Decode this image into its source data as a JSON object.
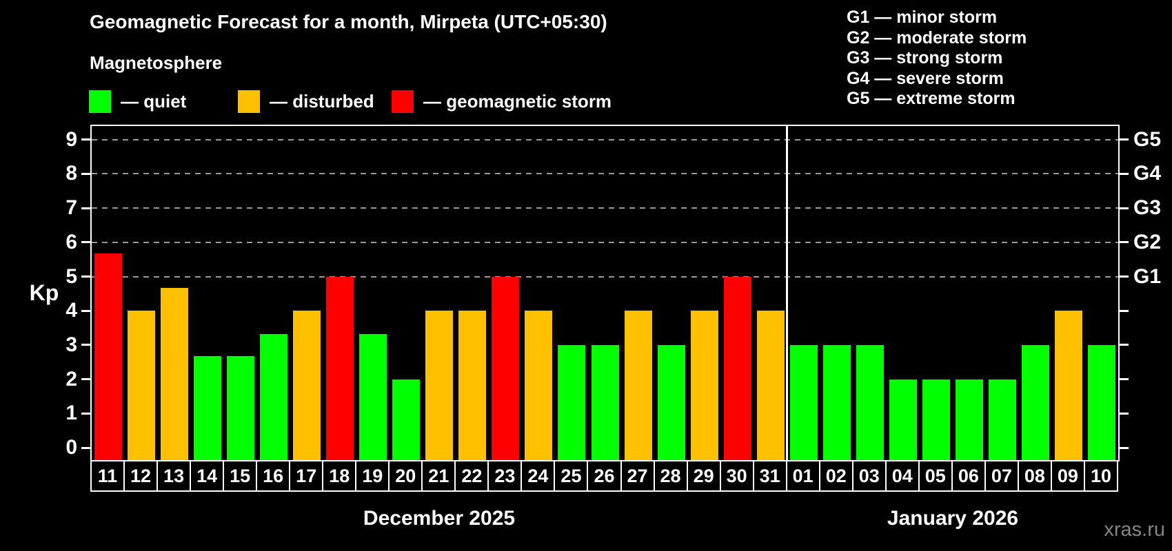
{
  "header": {
    "title": "Geomagnetic Forecast for a month, Mirpeta (UTC+05:30)",
    "subtitle": "Magnetosphere"
  },
  "kp_legend": [
    {
      "key": "quiet",
      "label": "— quiet",
      "color": "#00ff00"
    },
    {
      "key": "disturbed",
      "label": "— disturbed",
      "color": "#ffc000"
    },
    {
      "key": "storm",
      "label": "— geomagnetic storm",
      "color": "#ff0000"
    }
  ],
  "g_legend": [
    "G1 — minor storm",
    "G2 — moderate storm",
    "G3 — strong storm",
    "G4 — severe storm",
    "G5 — extreme storm"
  ],
  "watermark": "xras.ru",
  "chart_data": {
    "type": "bar",
    "title": "Geomagnetic Forecast for a month, Mirpeta (UTC+05:30)",
    "subtitle": "Magnetosphere",
    "ylabel": "Kp",
    "ylim": [
      0,
      9.4
    ],
    "y_ticks": [
      0,
      1,
      2,
      3,
      4,
      5,
      6,
      7,
      8,
      9
    ],
    "gridlines_kp": [
      5,
      6,
      7,
      8,
      9
    ],
    "grid_style": "dashed gray horizontal lines at storm levels",
    "legend_position": "top-left",
    "gridline_color": "#9a9a9a",
    "axis_color": "#ffffff",
    "watermark_color": "#858585",
    "colors": {
      "quiet": "#00ff00",
      "disturbed": "#ffc000",
      "storm": "#ff0000"
    },
    "right_axis": [
      {
        "label": "G1",
        "kp": 5
      },
      {
        "label": "G2",
        "kp": 6
      },
      {
        "label": "G3",
        "kp": 7
      },
      {
        "label": "G4",
        "kp": 8
      },
      {
        "label": "G5",
        "kp": 9
      }
    ],
    "months": [
      {
        "label": "December 2025",
        "days": [
          {
            "day": "11",
            "kp": 5.67,
            "level": "storm"
          },
          {
            "day": "12",
            "kp": 4,
            "level": "disturbed"
          },
          {
            "day": "13",
            "kp": 4.67,
            "level": "disturbed"
          },
          {
            "day": "14",
            "kp": 2.67,
            "level": "quiet"
          },
          {
            "day": "15",
            "kp": 2.67,
            "level": "quiet"
          },
          {
            "day": "16",
            "kp": 3.33,
            "level": "quiet"
          },
          {
            "day": "17",
            "kp": 4,
            "level": "disturbed"
          },
          {
            "day": "18",
            "kp": 5,
            "level": "storm"
          },
          {
            "day": "19",
            "kp": 3.33,
            "level": "quiet"
          },
          {
            "day": "20",
            "kp": 2,
            "level": "quiet"
          },
          {
            "day": "21",
            "kp": 4,
            "level": "disturbed"
          },
          {
            "day": "22",
            "kp": 4,
            "level": "disturbed"
          },
          {
            "day": "23",
            "kp": 5,
            "level": "storm"
          },
          {
            "day": "24",
            "kp": 4,
            "level": "disturbed"
          },
          {
            "day": "25",
            "kp": 3,
            "level": "quiet"
          },
          {
            "day": "26",
            "kp": 3,
            "level": "quiet"
          },
          {
            "day": "27",
            "kp": 4,
            "level": "disturbed"
          },
          {
            "day": "28",
            "kp": 3,
            "level": "quiet"
          },
          {
            "day": "29",
            "kp": 4,
            "level": "disturbed"
          },
          {
            "day": "30",
            "kp": 5,
            "level": "storm"
          },
          {
            "day": "31",
            "kp": 4,
            "level": "disturbed"
          }
        ]
      },
      {
        "label": "January 2026",
        "days": [
          {
            "day": "01",
            "kp": 3,
            "level": "quiet"
          },
          {
            "day": "02",
            "kp": 3,
            "level": "quiet"
          },
          {
            "day": "03",
            "kp": 3,
            "level": "quiet"
          },
          {
            "day": "04",
            "kp": 2,
            "level": "quiet"
          },
          {
            "day": "05",
            "kp": 2,
            "level": "quiet"
          },
          {
            "day": "06",
            "kp": 2,
            "level": "quiet"
          },
          {
            "day": "07",
            "kp": 2,
            "level": "quiet"
          },
          {
            "day": "08",
            "kp": 3,
            "level": "quiet"
          },
          {
            "day": "09",
            "kp": 4,
            "level": "disturbed"
          },
          {
            "day": "10",
            "kp": 3,
            "level": "quiet"
          }
        ]
      }
    ]
  }
}
